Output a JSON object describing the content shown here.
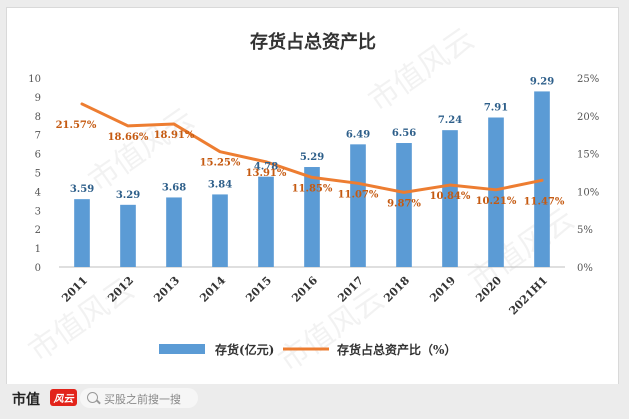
{
  "watermark": "市值风云",
  "footer": {
    "brand": "市值",
    "brand_logo": "风云",
    "search_placeholder": "买股之前搜一搜"
  },
  "colors": {
    "bar": "#5b9bd5",
    "bar_label": "#2e5f8a",
    "line": "#ed7d31",
    "line_label": "#c55a11",
    "axis_text": "#555555",
    "title": "#333333"
  },
  "chart_data": {
    "type": "bar",
    "title": "存货占总资产比",
    "categories": [
      "2011",
      "2012",
      "2013",
      "2014",
      "2015",
      "2016",
      "2017",
      "2018",
      "2019",
      "2020",
      "2021H1"
    ],
    "series": [
      {
        "name": "存货(亿元)",
        "type": "bar",
        "axis": "left",
        "values": [
          3.59,
          3.29,
          3.68,
          3.84,
          4.78,
          5.29,
          6.49,
          6.56,
          7.24,
          7.91,
          9.29
        ],
        "labels": [
          "3.59",
          "3.29",
          "3.68",
          "3.84",
          "4.78",
          "5.29",
          "6.49",
          "6.56",
          "7.24",
          "7.91",
          "9.29"
        ]
      },
      {
        "name": "存货占总资产比（%）",
        "type": "line",
        "axis": "right",
        "values": [
          21.57,
          18.66,
          18.91,
          15.25,
          13.91,
          11.85,
          11.07,
          9.87,
          10.84,
          10.21,
          11.47
        ],
        "labels": [
          "21.57%",
          "18.66%",
          "18.91%",
          "15.25%",
          "13.91%",
          "11.85%",
          "11.07%",
          "9.87%",
          "10.84%",
          "10.21%",
          "11.47%"
        ]
      }
    ],
    "left_axis": {
      "ylim": [
        0,
        10
      ],
      "ticks": [
        "0",
        "1",
        "2",
        "3",
        "4",
        "5",
        "6",
        "7",
        "8",
        "9",
        "10"
      ]
    },
    "right_axis": {
      "ylim": [
        0,
        25
      ],
      "ticks": [
        "0%",
        "5%",
        "10%",
        "15%",
        "20%",
        "25%"
      ]
    },
    "grid": false,
    "legend_position": "bottom"
  }
}
